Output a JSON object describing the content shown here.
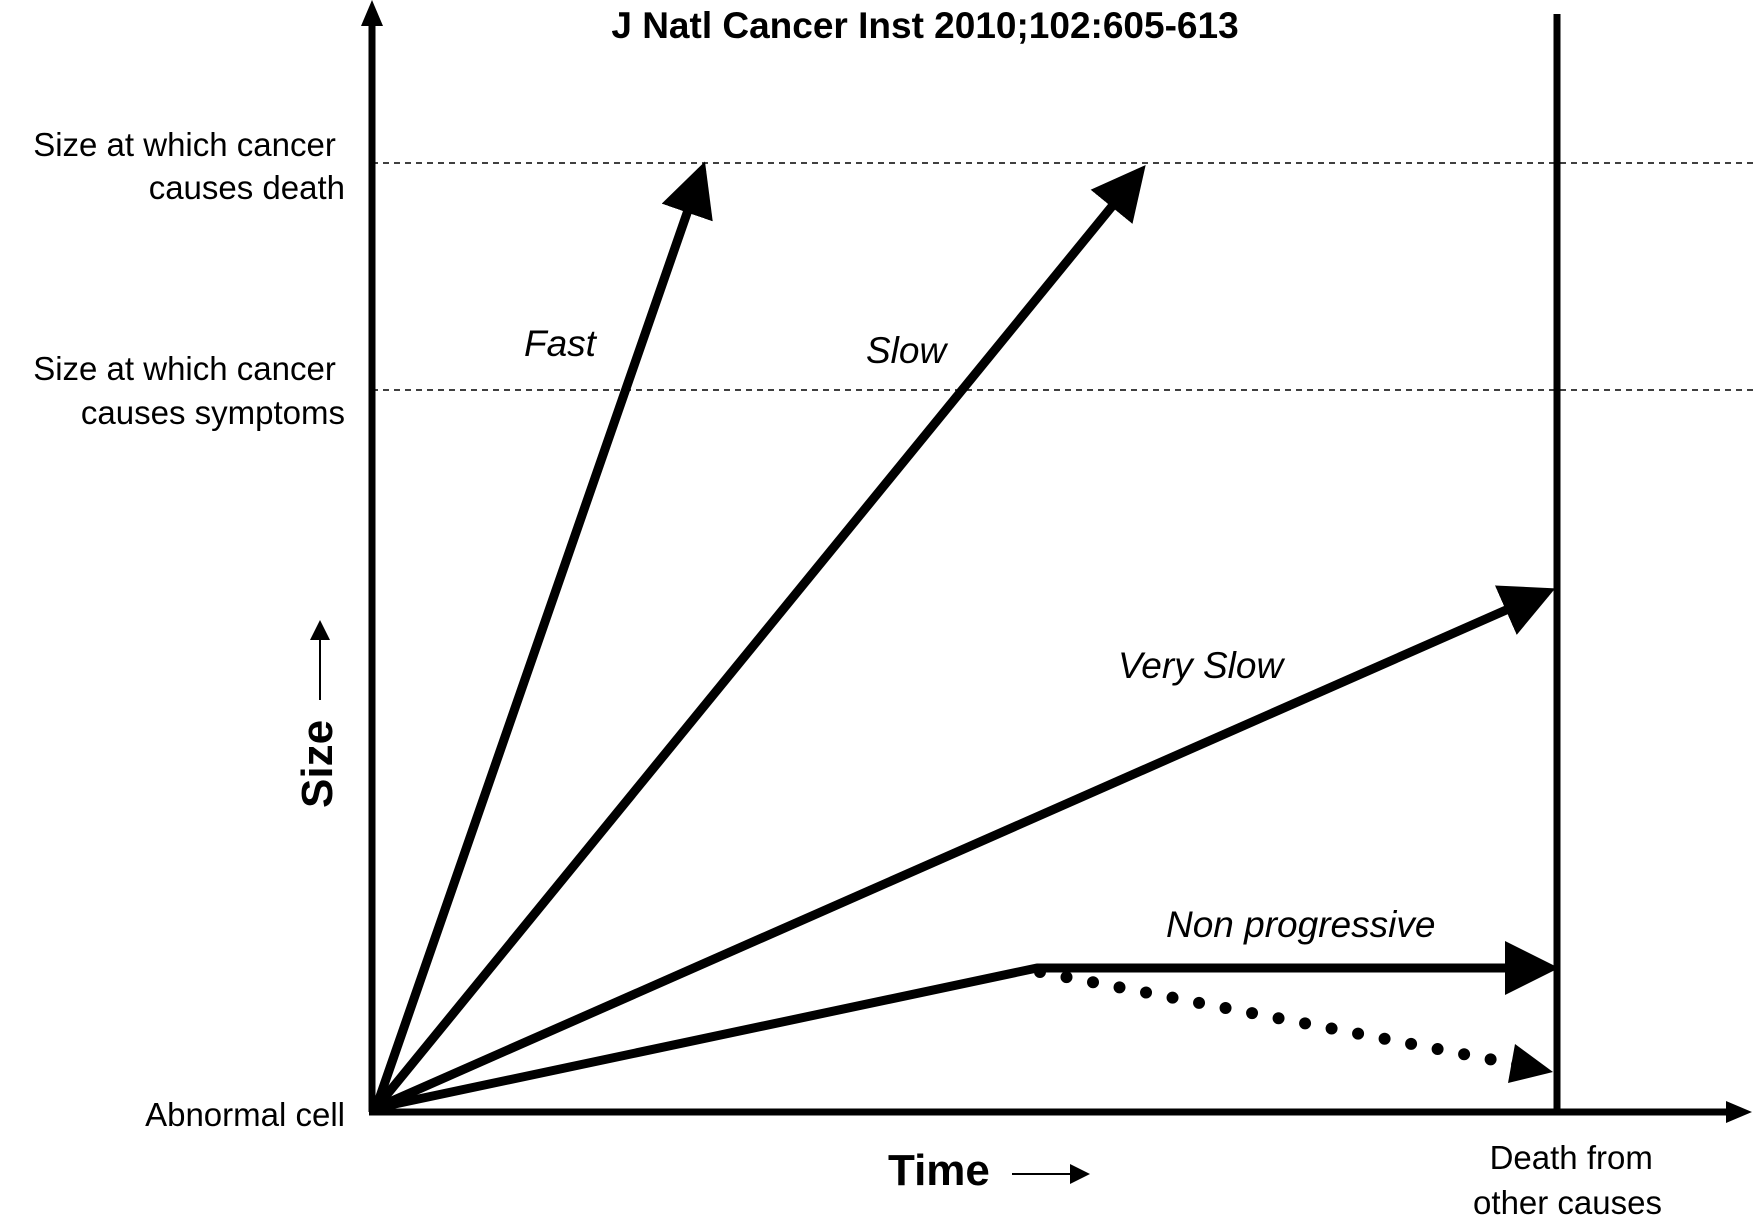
{
  "title": "J Natl Cancer Inst 2010;102:605-613",
  "y_axis": {
    "name": "Size",
    "levels": {
      "death": [
        "Size at which cancer",
        "causes death"
      ],
      "symptoms": [
        "Size at which cancer",
        "causes symptoms"
      ],
      "origin": "Abnormal cell"
    }
  },
  "x_axis": {
    "name": "Time",
    "marker": [
      "Death from",
      "other causes"
    ]
  },
  "growth_rates": {
    "fast": "Fast",
    "slow": "Slow",
    "very_slow": "Very Slow",
    "non_progressive": "Non progressive"
  },
  "colors": {
    "ink": "#000000",
    "background": "#ffffff"
  }
}
